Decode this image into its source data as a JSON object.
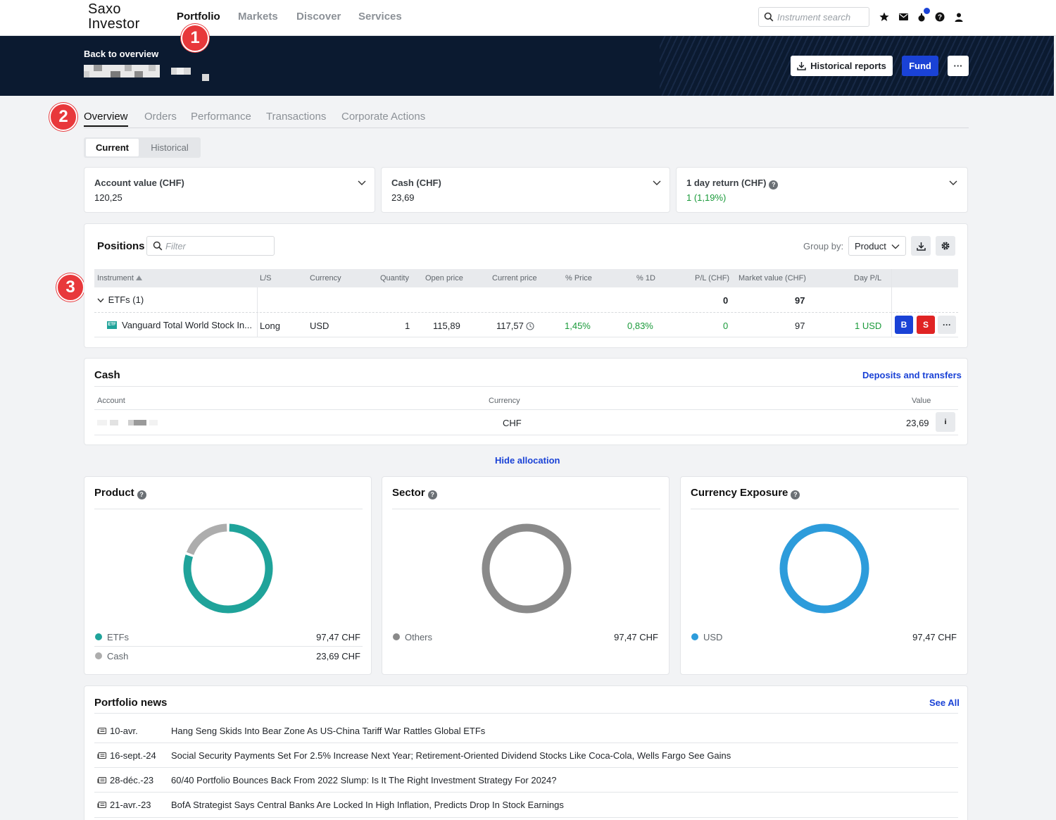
{
  "app": {
    "logo_line1": "Saxo",
    "logo_line2": "Investor",
    "nav": [
      "Portfolio",
      "Markets",
      "Discover",
      "Services"
    ],
    "search_placeholder": "Instrument search",
    "top_icons": [
      "star-icon",
      "mail-icon",
      "notifications-icon",
      "help-icon",
      "user-icon"
    ],
    "accent": "#1a42d6"
  },
  "header": {
    "back_label": "Back to overview",
    "historical_reports_label": "Historical reports",
    "fund_label": "Fund",
    "more_label": "···"
  },
  "badges": [
    "1",
    "2",
    "3"
  ],
  "tabs": [
    "Overview",
    "Orders",
    "Performance",
    "Transactions",
    "Corporate Actions"
  ],
  "toggle": {
    "current": "Current",
    "historical": "Historical"
  },
  "summary": [
    {
      "label": "Account value (CHF)",
      "value": "120,25"
    },
    {
      "label": "Cash (CHF)",
      "value": "23,69"
    },
    {
      "label": "1 day return (CHF)",
      "value": "1 (1,19%)"
    }
  ],
  "positions": {
    "title": "Positions",
    "filter_placeholder": "Filter",
    "group_by_label": "Group by:",
    "group_by_value": "Product",
    "columns": [
      "Instrument",
      "L/S",
      "Currency",
      "Quantity",
      "Open price",
      "Current price",
      "% Price",
      "% 1D",
      "P/L (CHF)",
      "Market value (CHF)",
      "Day P/L"
    ],
    "group": {
      "label": "ETFs (1)",
      "pl": "0",
      "market_value": "97"
    },
    "row": {
      "etf_tag": "ETF",
      "instrument": "Vanguard Total World Stock In...",
      "ls": "Long",
      "currency": "USD",
      "quantity": "1",
      "open_price": "115,89",
      "current_price": "117,57",
      "pct_price": "1,45%",
      "pct_1d": "0,83%",
      "pl": "0",
      "market_value": "97",
      "day_pl": "1 USD",
      "buy_label": "B",
      "sell_label": "S",
      "more_label": "···"
    }
  },
  "cash": {
    "title": "Cash",
    "link": "Deposits and transfers",
    "columns": [
      "Account",
      "Currency",
      "Value"
    ],
    "row": {
      "currency": "CHF",
      "value": "23,69",
      "info_label": "i"
    }
  },
  "hide_allocation": "Hide allocation",
  "allocation": [
    {
      "title": "Product",
      "items": [
        {
          "name": "ETFs",
          "value": "97,47 CHF",
          "color": "#1fa39a",
          "share": 0.805
        },
        {
          "name": "Cash",
          "value": "23,69 CHF",
          "color": "#adadad",
          "share": 0.195
        }
      ]
    },
    {
      "title": "Sector",
      "items": [
        {
          "name": "Others",
          "value": "97,47 CHF",
          "color": "#8a8a8a",
          "share": 1.0
        }
      ]
    },
    {
      "title": "Currency Exposure",
      "items": [
        {
          "name": "USD",
          "value": "97,47 CHF",
          "color": "#2d9cdb",
          "share": 1.0
        }
      ]
    }
  ],
  "news": {
    "title": "Portfolio news",
    "see_all": "See All",
    "items": [
      {
        "date": "10-avr.",
        "title": "Hang Seng Skids Into Bear Zone As US-China Tariff War Rattles Global ETFs"
      },
      {
        "date": "16-sept.-24",
        "title": "Social Security Payments Set For 2.5% Increase Next Year; Retirement-Oriented Dividend Stocks Like Coca-Cola, Wells Fargo See Gains"
      },
      {
        "date": "28-déc.-23",
        "title": "60/40 Portfolio Bounces Back From 2022 Slump: Is It The Right Investment Strategy For 2024?"
      },
      {
        "date": "21-avr.-23",
        "title": "BofA Strategist Says Central Banks Are Locked In High Inflation, Predicts Drop In Stock Earnings"
      }
    ]
  }
}
